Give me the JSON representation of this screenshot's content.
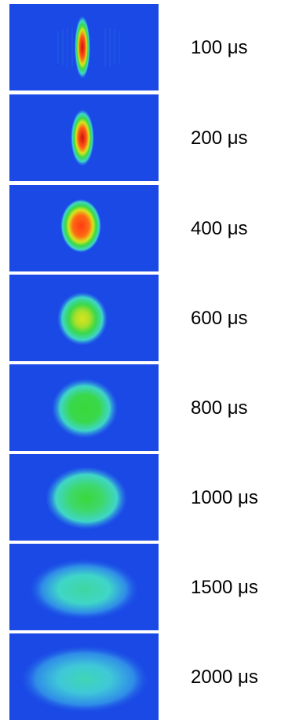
{
  "colormap": {
    "background": "#1a49e6",
    "low": "#2f8be8",
    "mid_low": "#3fd6c8",
    "mid": "#39d84a",
    "high": "#d8e51c",
    "peak": "#ff5a14",
    "core": "#cc1010"
  },
  "frames": [
    {
      "time": "100 μs",
      "cloud": {
        "aspect": "tall-narrow",
        "peak_level": 1.0
      }
    },
    {
      "time": "200 μs",
      "cloud": {
        "aspect": "tall",
        "peak_level": 0.95
      }
    },
    {
      "time": "400 μs",
      "cloud": {
        "aspect": "oval",
        "peak_level": 0.85
      }
    },
    {
      "time": "600 μs",
      "cloud": {
        "aspect": "round",
        "peak_level": 0.62
      }
    },
    {
      "time": "800 μs",
      "cloud": {
        "aspect": "round",
        "peak_level": 0.5
      }
    },
    {
      "time": "1000 μs",
      "cloud": {
        "aspect": "wide",
        "peak_level": 0.45
      }
    },
    {
      "time": "1500 μs",
      "cloud": {
        "aspect": "wide-diffuse",
        "peak_level": 0.3
      }
    },
    {
      "time": "2000 μs",
      "cloud": {
        "aspect": "wide-diffuse",
        "peak_level": 0.25
      }
    }
  ]
}
